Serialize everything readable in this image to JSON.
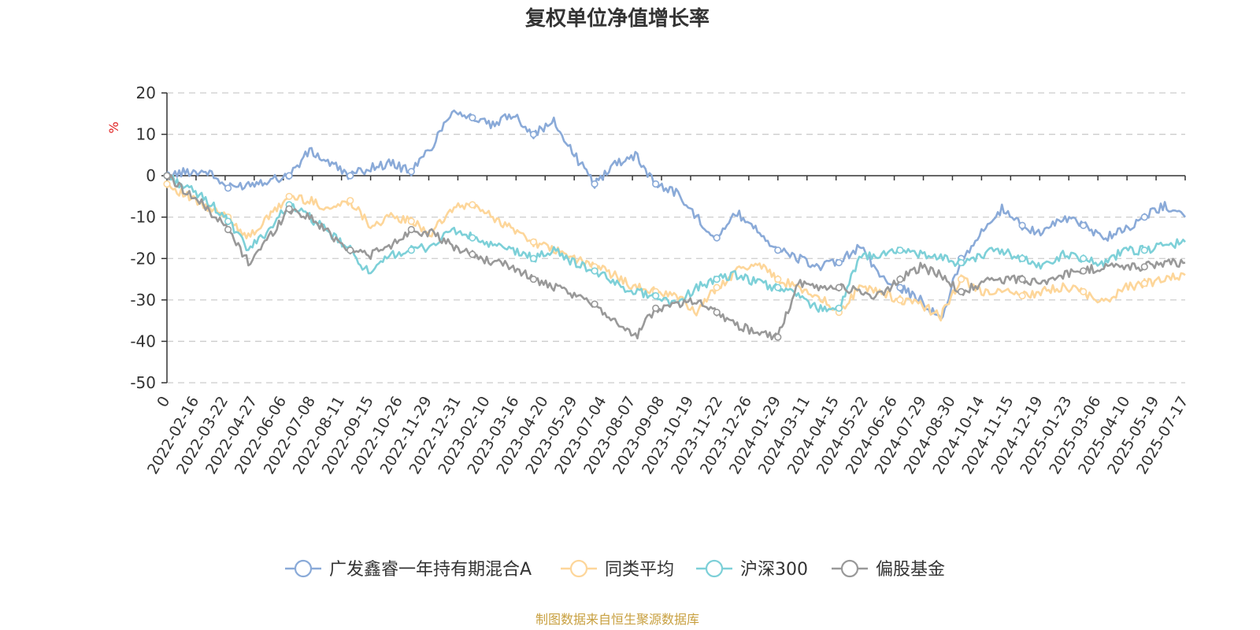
{
  "source_note": "制图数据来自恒生聚源数据库",
  "chart_data": {
    "type": "line",
    "title": "复权单位净值增长率",
    "ylabel": "%",
    "ylim": [
      -50,
      20
    ],
    "yticks": [
      20,
      10,
      0,
      -10,
      -20,
      -30,
      -40,
      -50
    ],
    "grid": true,
    "legend_position": "bottom",
    "x_tick_labels": [
      "0",
      "2022-02-16",
      "2022-03-22",
      "2022-04-27",
      "2022-06-06",
      "2022-07-08",
      "2022-08-11",
      "2022-09-15",
      "2022-10-26",
      "2022-11-29",
      "2022-12-31",
      "2023-02-10",
      "2023-03-16",
      "2023-04-20",
      "2023-05-29",
      "2023-07-04",
      "2023-08-07",
      "2023-09-08",
      "2023-10-19",
      "2023-11-22",
      "2023-12-26",
      "2024-01-29",
      "2024-03-11",
      "2024-04-15",
      "2024-05-22",
      "2024-06-26",
      "2024-07-29",
      "2024-08-30",
      "2024-10-14",
      "2024-11-15",
      "2024-12-19",
      "2025-01-23",
      "2025-03-06",
      "2025-04-10",
      "2025-05-19",
      "2025-07-17"
    ],
    "series": [
      {
        "name": "广发鑫睿一年持有期混合A",
        "color": "#8aaad8",
        "values": [
          0,
          1,
          1,
          -3,
          -2,
          -1,
          0,
          6,
          3,
          0,
          2,
          3,
          1,
          7,
          16,
          14,
          12,
          15,
          10,
          13,
          5,
          -2,
          3,
          5,
          -2,
          -4,
          -10,
          -15,
          -9,
          -13,
          -18,
          -20,
          -22,
          -21,
          -17,
          -24,
          -27,
          -30,
          -35,
          -20,
          -14,
          -8,
          -12,
          -14,
          -10,
          -12,
          -15,
          -13,
          -10,
          -7,
          -10
        ]
      },
      {
        "name": "同类平均",
        "color": "#fdd69a",
        "values": [
          -2,
          -5,
          -8,
          -10,
          -15,
          -10,
          -5,
          -6,
          -8,
          -6,
          -12,
          -10,
          -11,
          -14,
          -8,
          -7,
          -10,
          -13,
          -16,
          -18,
          -20,
          -22,
          -24,
          -27,
          -28,
          -29,
          -33,
          -27,
          -23,
          -21,
          -25,
          -27,
          -29,
          -33,
          -27,
          -28,
          -30,
          -31,
          -34,
          -25,
          -28,
          -28,
          -29,
          -28,
          -27,
          -28,
          -31,
          -27,
          -26,
          -25,
          -24
        ]
      },
      {
        "name": "沪深300",
        "color": "#7dd0d8",
        "values": [
          0,
          -3,
          -6,
          -11,
          -18,
          -13,
          -7,
          -10,
          -14,
          -18,
          -24,
          -19,
          -18,
          -17,
          -13,
          -15,
          -17,
          -18,
          -20,
          -18,
          -21,
          -23,
          -26,
          -28,
          -29,
          -31,
          -27,
          -25,
          -24,
          -26,
          -27,
          -29,
          -32,
          -32,
          -20,
          -19,
          -18,
          -19,
          -20,
          -21,
          -19,
          -18,
          -20,
          -22,
          -19,
          -20,
          -21,
          -18,
          -18,
          -17,
          -16
        ]
      },
      {
        "name": "偏股基金",
        "color": "#999999",
        "values": [
          0,
          -4,
          -8,
          -13,
          -21,
          -15,
          -8,
          -10,
          -14,
          -18,
          -19,
          -17,
          -13,
          -14,
          -17,
          -19,
          -21,
          -22,
          -25,
          -27,
          -29,
          -31,
          -35,
          -39,
          -32,
          -31,
          -30,
          -33,
          -36,
          -38,
          -39,
          -26,
          -27,
          -27,
          -28,
          -29,
          -25,
          -22,
          -24,
          -28,
          -26,
          -25,
          -25,
          -26,
          -24,
          -23,
          -22,
          -22,
          -22,
          -21,
          -21
        ]
      }
    ]
  }
}
